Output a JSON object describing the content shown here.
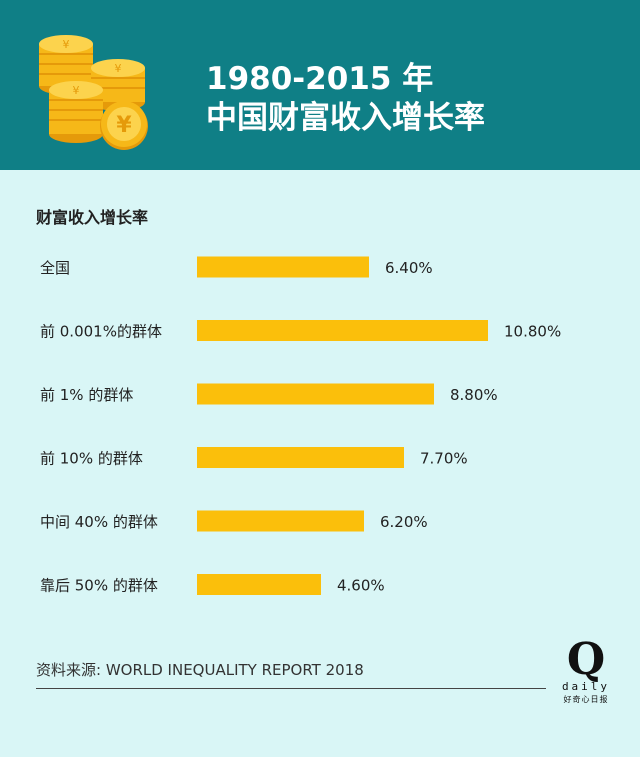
{
  "header": {
    "title_line1": "1980-2015 年",
    "title_line2": "中国财富收入增长率"
  },
  "colors": {
    "header_bg": "#0f7f86",
    "page_bg": "#d9f6f6",
    "bar": "#fbbf0b",
    "coin": "#f6b818"
  },
  "chart_data": {
    "type": "bar",
    "orientation": "horizontal",
    "title": "财富收入增长率",
    "categories": [
      "全国",
      "前 0.001%的群体",
      "前 1% 的群体",
      "前 10% 的群体",
      "中间 40% 的群体",
      "靠后 50% 的群体"
    ],
    "values": [
      6.4,
      10.8,
      8.8,
      7.7,
      6.2,
      4.6
    ],
    "value_labels": [
      "6.40%",
      "10.80%",
      "8.80%",
      "7.70%",
      "6.20%",
      "4.60%"
    ],
    "unit": "%",
    "xlim": [
      0,
      10.8
    ],
    "grid": false,
    "legend": "none"
  },
  "footer": {
    "source": "资料来源: WORLD INEQUALITY REPORT 2018",
    "logo_letter": "Q",
    "logo_word": "daily",
    "logo_cn": "好奇心日报"
  }
}
